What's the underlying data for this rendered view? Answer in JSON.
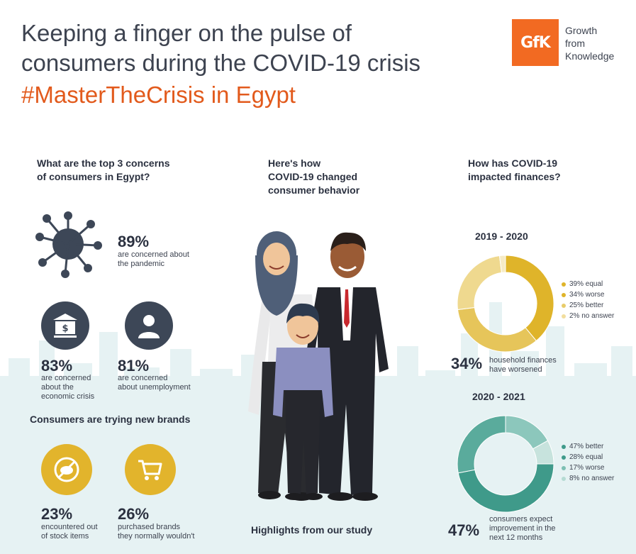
{
  "header": {
    "title_line1": "Keeping a finger on the pulse of",
    "title_line2": "consumers during the COVID-19 crisis",
    "hashtag": "#MasterTheCrisis in Egypt",
    "logo_text": "GfK",
    "tagline_line1": "Growth",
    "tagline_line2": "from",
    "tagline_line3": "Knowledge"
  },
  "concerns": {
    "heading_line1": "What are the top 3 concerns",
    "heading_line2": "of consumers in Egypt?",
    "pandemic": {
      "value": "89%",
      "text_line1": "are concerned about",
      "text_line2": "the pandemic"
    },
    "economic": {
      "value": "83%",
      "text_line1": "are concerned",
      "text_line2": "about the",
      "text_line3": "economic crisis"
    },
    "unemployment": {
      "value": "81%",
      "text_line1": "are concerned",
      "text_line2": "about unemployment"
    }
  },
  "brands": {
    "heading": "Consumers are trying new brands",
    "out_of_stock": {
      "value": "23%",
      "text_line1": "encountered out",
      "text_line2": "of stock items"
    },
    "new_brands": {
      "value": "26%",
      "text_line1": "purchased brands",
      "text_line2": "they normally wouldn't"
    }
  },
  "behavior": {
    "heading_line1": "Here's how",
    "heading_line2": "COVID-19 changed",
    "heading_line3": "consumer behavior",
    "footer": "Highlights from our study"
  },
  "finances": {
    "heading_line1": "How has COVID-19",
    "heading_line2": "impacted finances?",
    "period1": {
      "label": "2019 - 2020",
      "legend": [
        "39% equal",
        "34% worse",
        "25% better",
        "2% no answer"
      ],
      "values": [
        39,
        34,
        25,
        2
      ],
      "colors": [
        "#dfb42a",
        "#e6c55a",
        "#efd98f",
        "#f6ebc6"
      ],
      "stat": "34%",
      "stat_line1": "household finances",
      "stat_line2": "have worsened"
    },
    "period2": {
      "label": "2020 - 2021",
      "legend": [
        "47% better",
        "28% equal",
        "17% worse",
        "8% no answer"
      ],
      "values": [
        47,
        28,
        17,
        8
      ],
      "colors": [
        "#3f9a8a",
        "#5aab9c",
        "#8cc7bc",
        "#c7e3dd"
      ],
      "stat": "47%",
      "stat_line1": "consumers expect",
      "stat_line2": "improvement in the",
      "stat_line3": "next 12 months"
    }
  },
  "colors": {
    "accent": "#e25a1c",
    "navy": "#3d4757",
    "gold": "#e2b42c",
    "teal": "#3f9a8a"
  },
  "icons": [
    "virus-icon",
    "bank-icon",
    "person-icon",
    "out-of-stock-icon",
    "shopping-cart-icon"
  ]
}
